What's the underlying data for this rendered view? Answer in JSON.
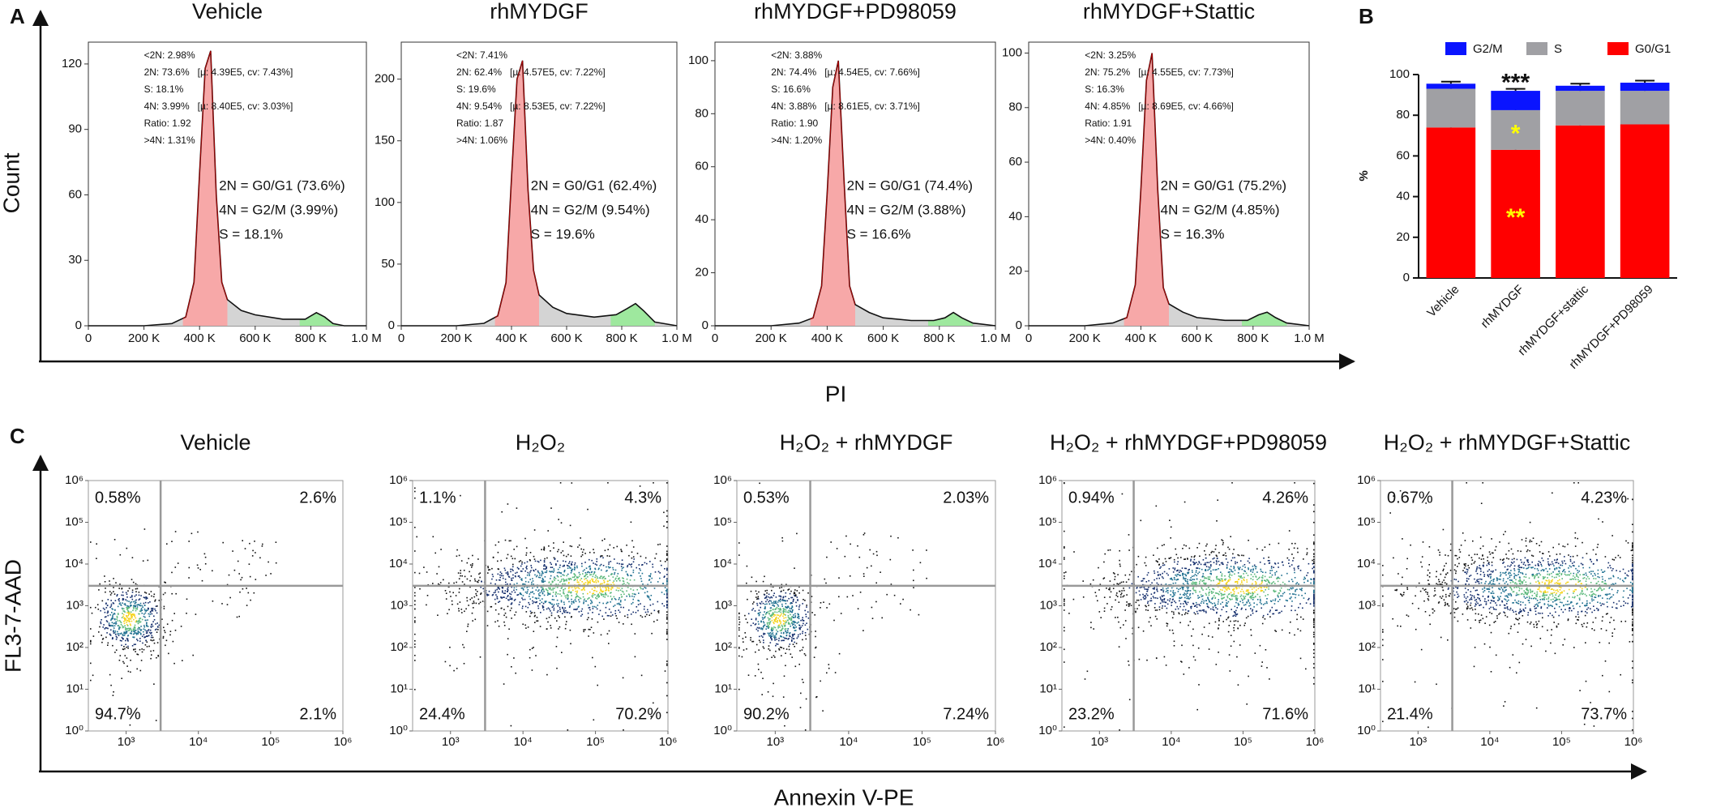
{
  "figure": {
    "panel_labels": [
      "A",
      "B",
      "C"
    ],
    "axis_labels": {
      "count": "Count",
      "pi": "PI",
      "fl3": "FL3-7-AAD",
      "annexin": "Annexin V-PE"
    }
  },
  "chart_data": [
    {
      "type": "histogram",
      "title": "Vehicle",
      "x": [
        0,
        100000,
        200000,
        300000,
        350000,
        380000,
        400000,
        420000,
        440000,
        460000,
        480000,
        500000,
        550000,
        600000,
        700000,
        780000,
        820000,
        850000,
        880000,
        920000,
        1000000
      ],
      "values": [
        0,
        0,
        0,
        1,
        4,
        20,
        70,
        118,
        126,
        60,
        20,
        12,
        7,
        5,
        3,
        3,
        6,
        4,
        1,
        0,
        0
      ],
      "xlim": [
        0,
        1000000
      ],
      "xticks": [
        0,
        {
          "value": 200000,
          "label": "200 K"
        },
        {
          "value": 400000,
          "label": "400 K"
        },
        {
          "value": 600000,
          "label": "600 K"
        },
        {
          "value": 800000,
          "label": "800 K"
        },
        {
          "value": 1000000,
          "label": "1.0 M"
        }
      ],
      "ylim": [
        0,
        130
      ],
      "yticks": [
        0,
        30,
        60,
        90,
        120
      ],
      "stats": [
        "<2N: 2.98%",
        "2N: 73.6%   [µ: 4.39E5, cv: 7.43%]",
        "S: 18.1%",
        "4N: 3.99%   [µ: 8.40E5, cv: 3.03%]",
        "Ratio: 1.92",
        ">4N: 1.31%"
      ],
      "notes": [
        "2N = G0/G1 (73.6%)",
        "4N = G2/M (3.99%)",
        "S = 18.1%"
      ]
    },
    {
      "type": "histogram",
      "title": "rhMYDGF",
      "x": [
        0,
        100000,
        200000,
        300000,
        350000,
        380000,
        400000,
        420000,
        440000,
        460000,
        480000,
        500000,
        550000,
        600000,
        700000,
        780000,
        820000,
        850000,
        880000,
        920000,
        1000000
      ],
      "values": [
        0,
        0,
        0,
        2,
        8,
        35,
        120,
        200,
        215,
        110,
        45,
        25,
        15,
        10,
        7,
        9,
        14,
        18,
        12,
        3,
        0
      ],
      "xlim": [
        0,
        1000000
      ],
      "xticks": [
        0,
        {
          "value": 200000,
          "label": "200 K"
        },
        {
          "value": 400000,
          "label": "400 K"
        },
        {
          "value": 600000,
          "label": "600 K"
        },
        {
          "value": 800000,
          "label": "800 K"
        },
        {
          "value": 1000000,
          "label": "1.0 M"
        }
      ],
      "ylim": [
        0,
        230
      ],
      "yticks": [
        0,
        50,
        100,
        150,
        200
      ],
      "stats": [
        "<2N: 7.41%",
        "2N: 62.4%   [µ: 4.57E5, cv: 7.22%]",
        "S: 19.6%",
        "4N: 9.54%   [µ: 8.53E5, cv: 7.22%]",
        "Ratio: 1.87",
        ">4N: 1.06%"
      ],
      "notes": [
        "2N = G0/G1 (62.4%)",
        "4N = G2/M (9.54%)",
        "S = 19.6%"
      ]
    },
    {
      "type": "histogram",
      "title": "rhMYDGF+PD98059",
      "x": [
        0,
        100000,
        200000,
        300000,
        350000,
        380000,
        400000,
        420000,
        440000,
        460000,
        480000,
        500000,
        550000,
        600000,
        700000,
        780000,
        820000,
        850000,
        880000,
        920000,
        1000000
      ],
      "values": [
        0,
        0,
        0,
        1,
        3,
        15,
        50,
        90,
        100,
        55,
        15,
        8,
        5,
        3,
        2,
        2,
        3,
        5,
        3,
        1,
        0
      ],
      "xlim": [
        0,
        1000000
      ],
      "xticks": [
        0,
        {
          "value": 200000,
          "label": "200 K"
        },
        {
          "value": 400000,
          "label": "400 K"
        },
        {
          "value": 600000,
          "label": "600 K"
        },
        {
          "value": 800000,
          "label": "800 K"
        },
        {
          "value": 1000000,
          "label": "1.0 M"
        }
      ],
      "ylim": [
        0,
        107
      ],
      "yticks": [
        0,
        20,
        40,
        60,
        80,
        100
      ],
      "stats": [
        "<2N: 3.88%",
        "2N: 74.4%   [µ: 4.54E5, cv: 7.66%]",
        "S: 16.6%",
        "4N: 3.88%   [µ: 8.61E5, cv: 3.71%]",
        "Ratio: 1.90",
        ">4N: 1.20%"
      ],
      "notes": [
        "2N = G0/G1 (74.4%)",
        "4N = G2/M (3.88%)",
        "S = 16.6%"
      ]
    },
    {
      "type": "histogram",
      "title": "rhMYDGF+Stattic",
      "x": [
        0,
        100000,
        200000,
        300000,
        350000,
        380000,
        400000,
        420000,
        440000,
        460000,
        480000,
        500000,
        550000,
        600000,
        700000,
        780000,
        820000,
        850000,
        880000,
        920000,
        1000000
      ],
      "values": [
        0,
        0,
        0,
        1,
        3,
        15,
        50,
        90,
        100,
        50,
        14,
        8,
        5,
        3,
        2,
        2,
        4,
        5,
        3,
        1,
        0
      ],
      "xlim": [
        0,
        1000000
      ],
      "xticks": [
        0,
        {
          "value": 200000,
          "label": "200 K"
        },
        {
          "value": 400000,
          "label": "400 K"
        },
        {
          "value": 600000,
          "label": "600 K"
        },
        {
          "value": 800000,
          "label": "800 K"
        },
        {
          "value": 1000000,
          "label": "1.0 M"
        }
      ],
      "ylim": [
        0,
        104
      ],
      "yticks": [
        0,
        20,
        40,
        60,
        80,
        100
      ],
      "stats": [
        "<2N: 3.25%",
        "2N: 75.2%   [µ: 4.55E5, cv: 7.73%]",
        "S: 16.3%",
        "4N: 4.85%   [µ: 8.69E5, cv: 4.66%]",
        "Ratio: 1.91",
        ">4N: 0.40%"
      ],
      "notes": [
        "2N = G0/G1 (75.2%)",
        "4N = G2/M (4.85%)",
        "S = 16.3%"
      ]
    },
    {
      "type": "stacked_bar",
      "ylabel": "%",
      "legend": "top",
      "categories": [
        "Vehicle",
        "rhMYDGF",
        "rhMYDGF+stattic",
        "rhMYDGF+PD98059"
      ],
      "series": [
        {
          "name": "G0/G1",
          "color": "#ff0000",
          "values": [
            74,
            63,
            75,
            75.5
          ],
          "errors": [
            1,
            1,
            1,
            1.2
          ]
        },
        {
          "name": "S",
          "color": "#a0a0a4",
          "values": [
            19,
            19.5,
            17,
            16.5
          ],
          "errors": [
            1,
            1,
            1,
            1
          ]
        },
        {
          "name": "G2/M",
          "color": "#0a14ff",
          "values": [
            2.5,
            9.5,
            2.5,
            4
          ],
          "errors": [
            1,
            1,
            1,
            1
          ]
        }
      ],
      "ylim": [
        0,
        100
      ],
      "yticks": [
        0,
        20,
        40,
        60,
        80,
        100
      ],
      "annotations": [
        {
          "text": "***",
          "category": "rhMYDGF",
          "series": "G2/M",
          "color": "#111111"
        },
        {
          "text": "*",
          "category": "rhMYDGF",
          "series": "S",
          "color": "#ffff00"
        },
        {
          "text": "**",
          "category": "rhMYDGF",
          "series": "G0/G1",
          "color": "#ffff00"
        }
      ]
    },
    {
      "type": "scatter",
      "title": "Vehicle",
      "log": true,
      "xlim": [
        300,
        1000000
      ],
      "ylim": [
        1,
        1000000
      ],
      "xticks": [
        {
          "value": 1000,
          "label": "10³"
        },
        {
          "value": 10000,
          "label": "10⁴"
        },
        {
          "value": 100000,
          "label": "10⁵"
        },
        {
          "value": 1000000,
          "label": "10⁶"
        }
      ],
      "yticks": [
        {
          "value": 1,
          "label": "10⁰"
        },
        {
          "value": 10,
          "label": "10¹"
        },
        {
          "value": 100,
          "label": "10²"
        },
        {
          "value": 1000,
          "label": "10³"
        },
        {
          "value": 10000,
          "label": "10⁴"
        },
        {
          "value": 100000,
          "label": "10⁵"
        },
        {
          "value": 1000000,
          "label": "10⁶"
        }
      ],
      "gate": {
        "x": 3000,
        "y": 3000
      },
      "values": [
        0.58,
        2.6,
        94.7,
        2.1
      ],
      "value_labels": [
        "0.58%",
        "2.6%",
        "94.7%",
        "2.1%"
      ]
    },
    {
      "type": "scatter",
      "title": "H₂O₂",
      "log": true,
      "xlim": [
        300,
        1000000
      ],
      "ylim": [
        1,
        1000000
      ],
      "xticks": [
        {
          "value": 1000,
          "label": "10³"
        },
        {
          "value": 10000,
          "label": "10⁴"
        },
        {
          "value": 100000,
          "label": "10⁵"
        },
        {
          "value": 1000000,
          "label": "10⁶"
        }
      ],
      "yticks": [
        {
          "value": 1,
          "label": "10⁰"
        },
        {
          "value": 10,
          "label": "10¹"
        },
        {
          "value": 100,
          "label": "10²"
        },
        {
          "value": 1000,
          "label": "10³"
        },
        {
          "value": 10000,
          "label": "10⁴"
        },
        {
          "value": 100000,
          "label": "10⁵"
        },
        {
          "value": 1000000,
          "label": "10⁶"
        }
      ],
      "gate": {
        "x": 3000,
        "y": 3000
      },
      "values": [
        1.1,
        4.3,
        24.4,
        70.2
      ],
      "value_labels": [
        "1.1%",
        "4.3%",
        "24.4%",
        "70.2%"
      ]
    },
    {
      "type": "scatter",
      "title": "H₂O₂ + rhMYDGF",
      "log": true,
      "xlim": [
        300,
        1000000
      ],
      "ylim": [
        1,
        1000000
      ],
      "xticks": [
        {
          "value": 1000,
          "label": "10³"
        },
        {
          "value": 10000,
          "label": "10⁴"
        },
        {
          "value": 100000,
          "label": "10⁵"
        },
        {
          "value": 1000000,
          "label": "10⁶"
        }
      ],
      "yticks": [
        {
          "value": 1,
          "label": "10⁰"
        },
        {
          "value": 10,
          "label": "10¹"
        },
        {
          "value": 100,
          "label": "10²"
        },
        {
          "value": 1000,
          "label": "10³"
        },
        {
          "value": 10000,
          "label": "10⁴"
        },
        {
          "value": 100000,
          "label": "10⁵"
        },
        {
          "value": 1000000,
          "label": "10⁶"
        }
      ],
      "gate": {
        "x": 3000,
        "y": 3000
      },
      "values": [
        0.53,
        2.03,
        90.2,
        7.24
      ],
      "value_labels": [
        "0.53%",
        "2.03%",
        "90.2%",
        "7.24%"
      ]
    },
    {
      "type": "scatter",
      "title": "H₂O₂ + rhMYDGF+PD98059",
      "log": true,
      "xlim": [
        300,
        1000000
      ],
      "ylim": [
        1,
        1000000
      ],
      "xticks": [
        {
          "value": 1000,
          "label": "10³"
        },
        {
          "value": 10000,
          "label": "10⁴"
        },
        {
          "value": 100000,
          "label": "10⁵"
        },
        {
          "value": 1000000,
          "label": "10⁶"
        }
      ],
      "yticks": [
        {
          "value": 1,
          "label": "10⁰"
        },
        {
          "value": 10,
          "label": "10¹"
        },
        {
          "value": 100,
          "label": "10²"
        },
        {
          "value": 1000,
          "label": "10³"
        },
        {
          "value": 10000,
          "label": "10⁴"
        },
        {
          "value": 100000,
          "label": "10⁵"
        },
        {
          "value": 1000000,
          "label": "10⁶"
        }
      ],
      "gate": {
        "x": 3000,
        "y": 3000
      },
      "values": [
        0.94,
        4.26,
        23.2,
        71.6
      ],
      "value_labels": [
        "0.94%",
        "4.26%",
        "23.2%",
        "71.6%"
      ]
    },
    {
      "type": "scatter",
      "title": "H₂O₂ + rhMYDGF+Stattic",
      "log": true,
      "xlim": [
        300,
        1000000
      ],
      "ylim": [
        1,
        1000000
      ],
      "xticks": [
        {
          "value": 1000,
          "label": "10³"
        },
        {
          "value": 10000,
          "label": "10⁴"
        },
        {
          "value": 100000,
          "label": "10⁵"
        },
        {
          "value": 1000000,
          "label": "10⁶"
        }
      ],
      "yticks": [
        {
          "value": 1,
          "label": "10⁰"
        },
        {
          "value": 10,
          "label": "10¹"
        },
        {
          "value": 100,
          "label": "10²"
        },
        {
          "value": 1000,
          "label": "10³"
        },
        {
          "value": 10000,
          "label": "10⁴"
        },
        {
          "value": 100000,
          "label": "10⁵"
        },
        {
          "value": 1000000,
          "label": "10⁶"
        }
      ],
      "gate": {
        "x": 3000,
        "y": 3000
      },
      "values": [
        0.67,
        4.23,
        21.4,
        73.7
      ],
      "value_labels": [
        "0.67%",
        "4.23%",
        "21.4%",
        "73.7%"
      ]
    }
  ]
}
